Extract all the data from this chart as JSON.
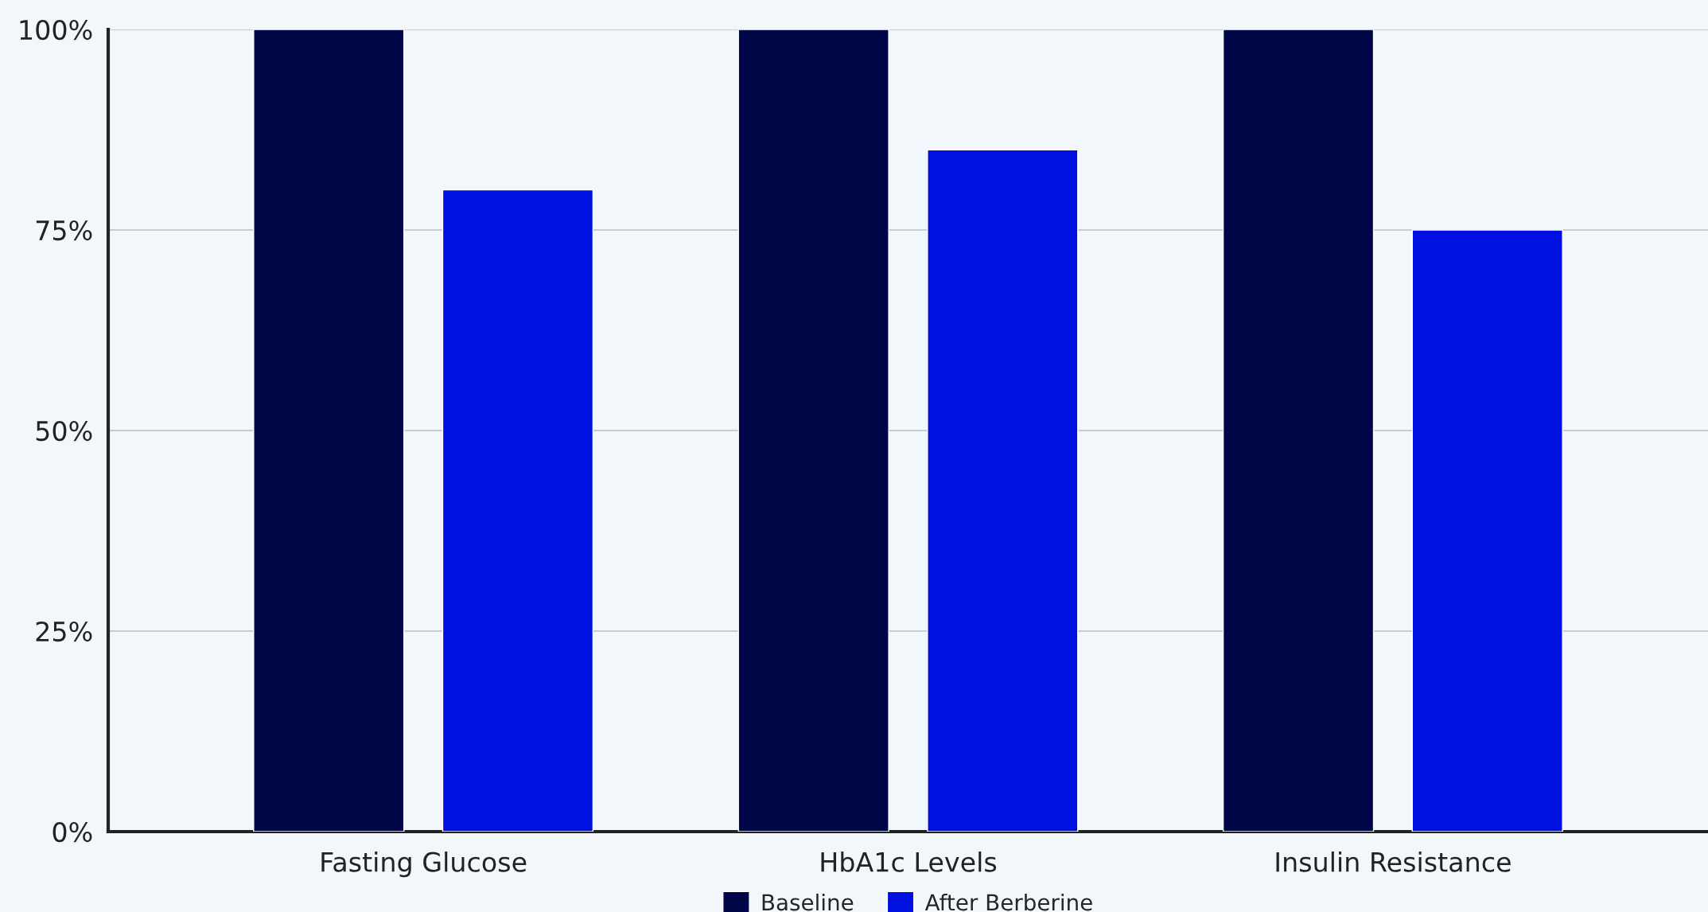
{
  "chart_data": {
    "type": "bar",
    "categories": [
      "Fasting Glucose",
      "HbA1c Levels",
      "Insulin Resistance"
    ],
    "series": [
      {
        "name": "Baseline",
        "color": "#000748",
        "values": [
          100,
          100,
          100
        ]
      },
      {
        "name": "After Berberine",
        "color": "#0010e0",
        "values": [
          80,
          85,
          75
        ]
      }
    ],
    "ylim": [
      0,
      100
    ],
    "yticks": [
      {
        "value": 0,
        "label": "0%"
      },
      {
        "value": 25,
        "label": "25%"
      },
      {
        "value": 50,
        "label": "50%"
      },
      {
        "value": 75,
        "label": "75%"
      },
      {
        "value": 100,
        "label": "100%"
      }
    ],
    "grid": "y",
    "legend": "bottom"
  }
}
